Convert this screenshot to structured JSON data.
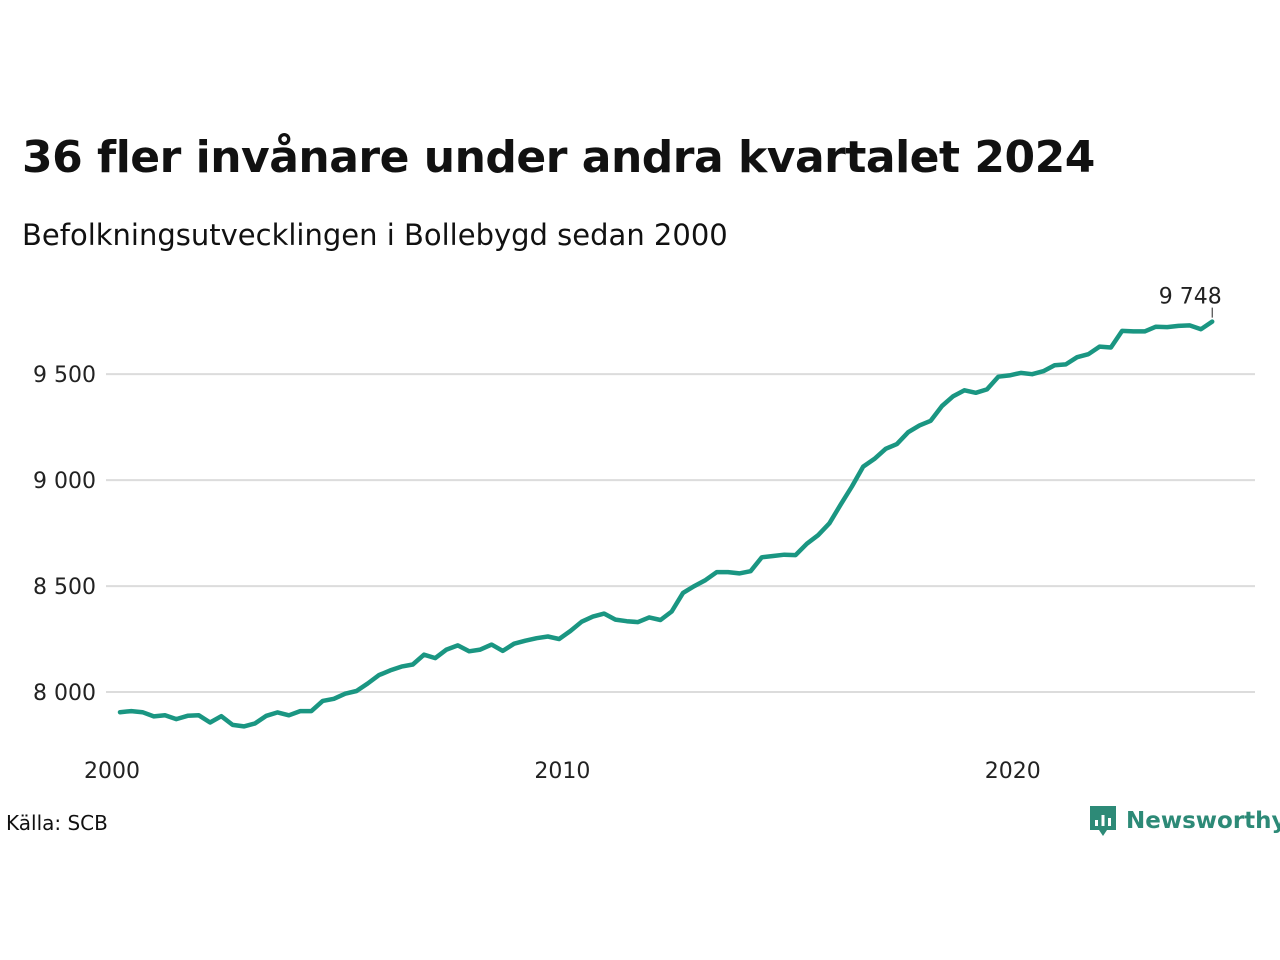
{
  "title": "36 fler invånare under andra kvartalet 2024",
  "subtitle": "Befolkningsutvecklingen i Bollebygd sedan 2000",
  "source": "Källa: SCB",
  "brand": {
    "name": "Newsworthy",
    "color": "#2d8a77",
    "icon": "chart-bubble-icon"
  },
  "colors": {
    "line": "#1a9682",
    "grid": "#dcdcdc",
    "text": "#111111"
  },
  "chart_data": {
    "type": "line",
    "title": "36 fler invånare under andra kvartalet 2024",
    "subtitle": "Befolkningsutvecklingen i Bollebygd sedan 2000",
    "xlabel": "",
    "ylabel": "",
    "x_start": "2000",
    "x_step": "quarter",
    "x_ticks": [
      2000,
      2010,
      2020
    ],
    "x_tick_labels": [
      "2000",
      "2010",
      "2020"
    ],
    "y_ticks": [
      8000,
      8500,
      9000,
      9500
    ],
    "y_tick_labels": [
      "8 000",
      "8 500",
      "9 000",
      "9 500"
    ],
    "xlim": [
      2000,
      2025.2
    ],
    "ylim": [
      7750,
      9850
    ],
    "grid": "horizontal",
    "end_label": "9 748",
    "series": [
      {
        "name": "",
        "values": [
          7905,
          7910,
          7905,
          7885,
          7890,
          7872,
          7888,
          7890,
          7856,
          7886,
          7845,
          7838,
          7852,
          7888,
          7904,
          7890,
          7910,
          7910,
          7958,
          7968,
          7992,
          8005,
          8040,
          8080,
          8102,
          8120,
          8130,
          8176,
          8160,
          8200,
          8220,
          8192,
          8200,
          8224,
          8194,
          8228,
          8242,
          8254,
          8262,
          8250,
          8288,
          8332,
          8356,
          8370,
          8342,
          8334,
          8330,
          8352,
          8340,
          8380,
          8468,
          8500,
          8528,
          8566,
          8566,
          8560,
          8570,
          8636,
          8642,
          8648,
          8646,
          8700,
          8740,
          8796,
          8884,
          8970,
          9064,
          9100,
          9148,
          9170,
          9226,
          9258,
          9280,
          9350,
          9396,
          9424,
          9412,
          9428,
          9488,
          9494,
          9506,
          9500,
          9514,
          9542,
          9546,
          9580,
          9594,
          9630,
          9626,
          9704,
          9702,
          9702,
          9724,
          9722,
          9728,
          9730,
          9712,
          9748
        ]
      }
    ]
  }
}
